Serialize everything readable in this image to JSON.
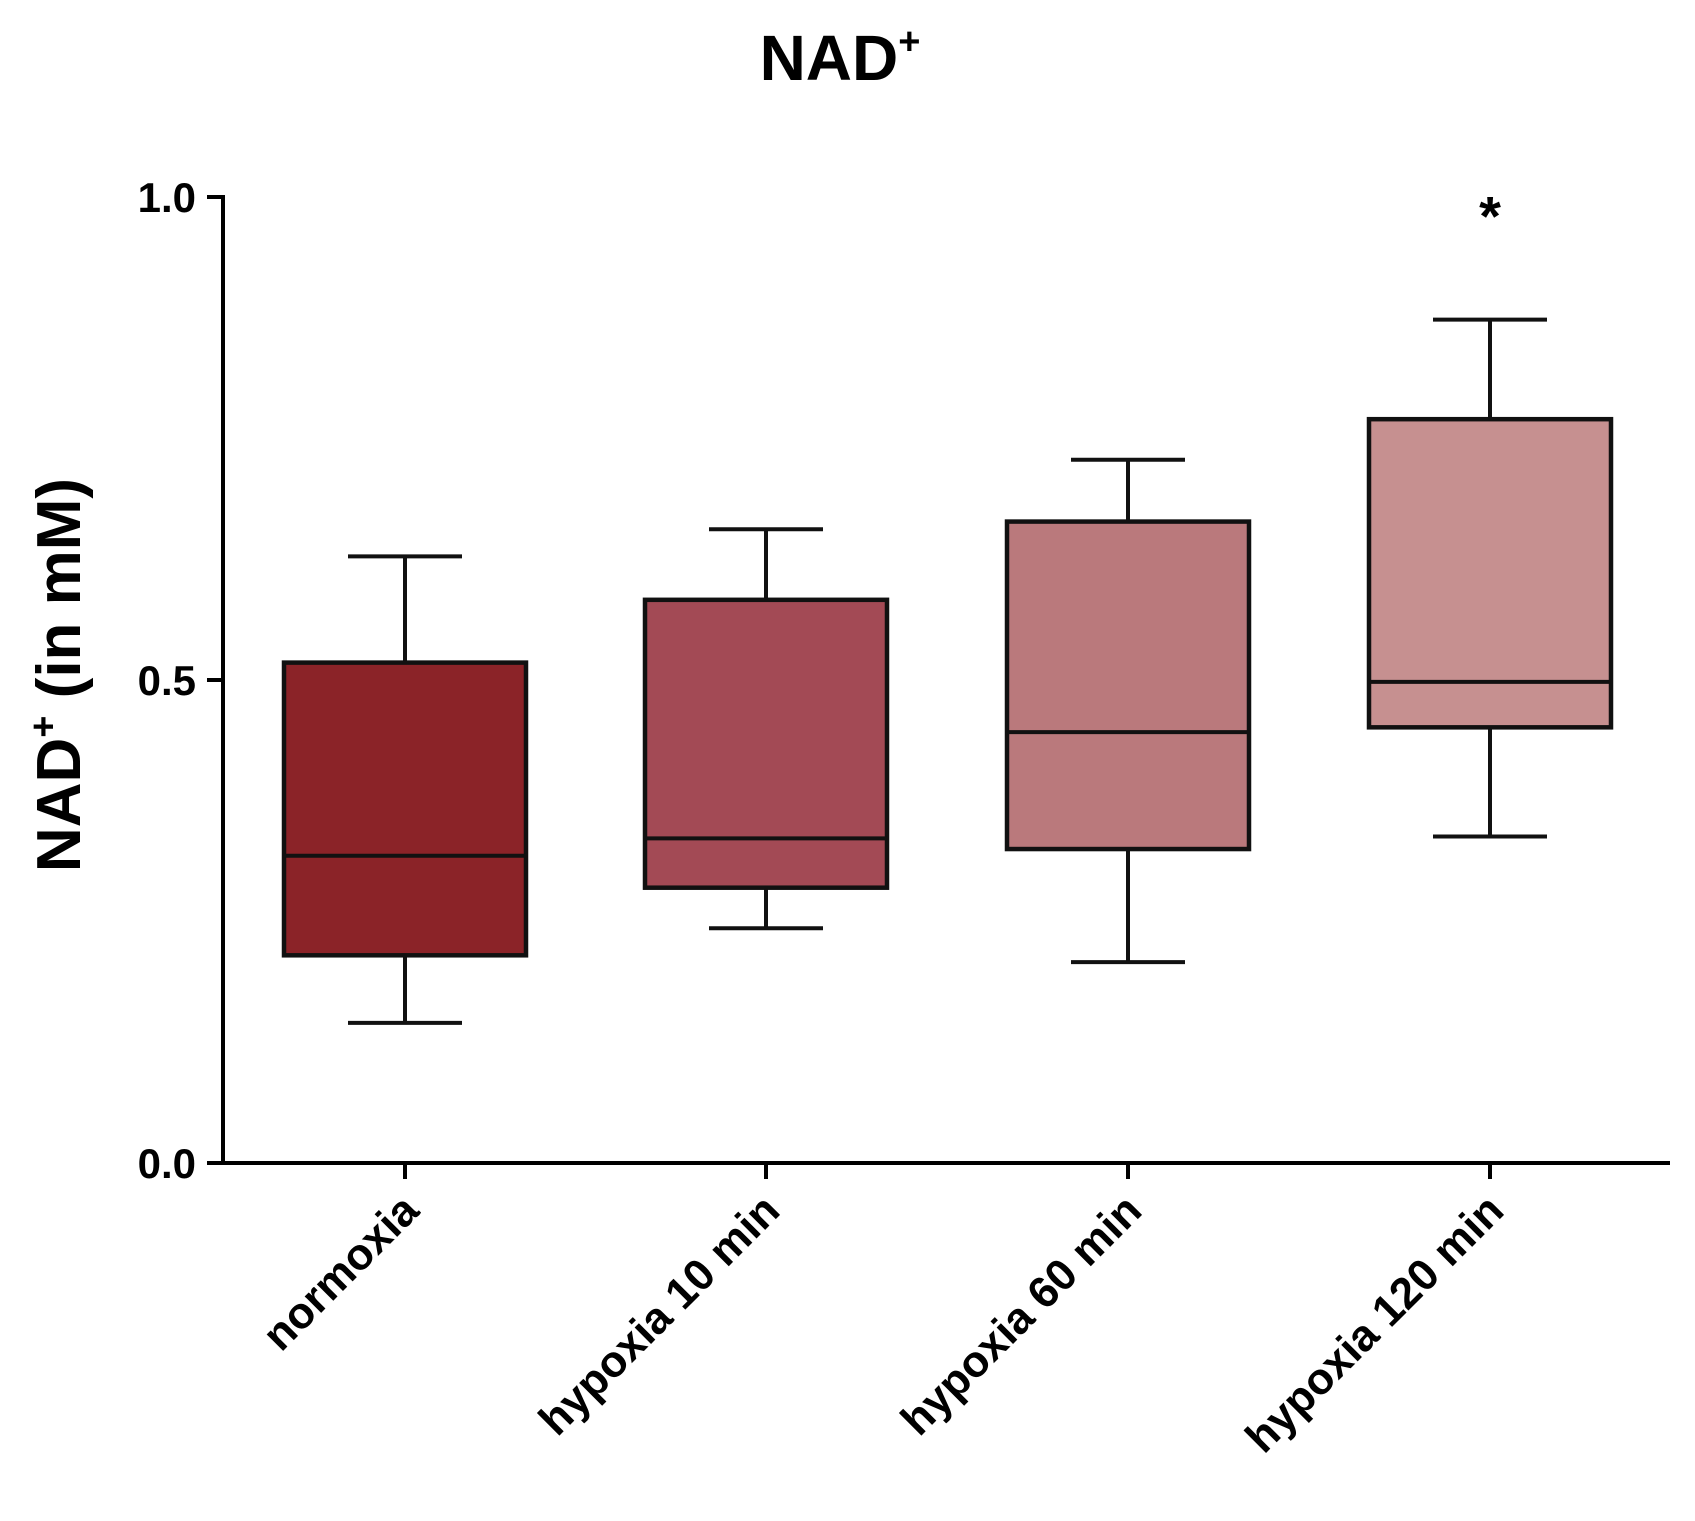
{
  "chart_data": {
    "type": "boxplot",
    "title": {
      "main": "NAD",
      "sup": "+"
    },
    "ylabel": {
      "main": "NAD",
      "sup": "+",
      "rest": " (in mM)"
    },
    "xlabel": "",
    "ylim": [
      0.0,
      1.0
    ],
    "yticks": [
      {
        "value": 0.0,
        "label": "0.0"
      },
      {
        "value": 0.5,
        "label": "0.5"
      },
      {
        "value": 1.0,
        "label": "1.0"
      }
    ],
    "categories": [
      "normoxia",
      "hypoxia 10 min",
      "hypoxia 60 min",
      "hypoxia 120 min"
    ],
    "boxes": [
      {
        "category": "normoxia",
        "min": 0.145,
        "q1": 0.215,
        "median": 0.318,
        "q3": 0.518,
        "max": 0.628,
        "color": "#8B2328"
      },
      {
        "category": "hypoxia 10 min",
        "min": 0.243,
        "q1": 0.285,
        "median": 0.336,
        "q3": 0.583,
        "max": 0.656,
        "color": "#A34A55"
      },
      {
        "category": "hypoxia 60 min",
        "min": 0.208,
        "q1": 0.325,
        "median": 0.446,
        "q3": 0.664,
        "max": 0.728,
        "color": "#BA797C"
      },
      {
        "category": "hypoxia 120 min",
        "min": 0.338,
        "q1": 0.451,
        "median": 0.498,
        "q3": 0.77,
        "max": 0.873,
        "color": "#C69090"
      }
    ],
    "annotations": [
      {
        "category": "hypoxia 120 min",
        "text": "*",
        "y": 0.985
      }
    ],
    "grid": false,
    "legend": "none"
  }
}
